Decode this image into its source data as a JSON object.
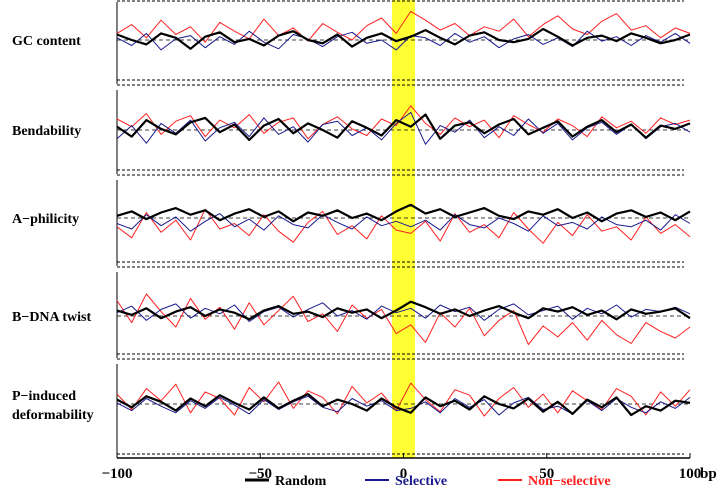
{
  "chart_data": {
    "type": "line",
    "x_label": "bp",
    "xlim": [
      -100,
      100
    ],
    "x_ticks": [
      "−100",
      "−50",
      "0",
      "50",
      "100"
    ],
    "highlight_region": [
      -4,
      4
    ],
    "highlight_color": "#ffff33",
    "series_meta": [
      {
        "name": "Random",
        "color": "#000000"
      },
      {
        "name": "Selective",
        "color": "#1a1a8c"
      },
      {
        "name": "Non−selective",
        "color": "#ff2020"
      }
    ],
    "panels": [
      {
        "label_lines": [
          "GC content"
        ],
        "random": [
          0.5,
          0.0,
          -0.4,
          0.6,
          0.2,
          -0.8,
          0.3,
          0.7,
          -0.2,
          0.1,
          -0.5,
          0.4,
          0.8,
          0.0,
          -0.3,
          0.5,
          -0.6,
          0.2,
          0.6,
          -0.1,
          0.3,
          0.9,
          0.2,
          -0.4,
          0.4,
          0.7,
          0.0,
          -0.2,
          0.1,
          1.0,
          0.3,
          -0.5,
          0.2,
          0.4,
          -0.1,
          0.6,
          0.2,
          -0.3,
          0.0,
          0.5
        ],
        "selective": [
          0.2,
          -0.5,
          0.6,
          -0.9,
          0.1,
          0.4,
          -0.7,
          0.3,
          -0.4,
          0.8,
          -0.2,
          -0.8,
          0.5,
          0.1,
          -0.6,
          0.3,
          0.7,
          -0.3,
          0.0,
          -0.9,
          0.4,
          0.2,
          -0.5,
          0.6,
          -0.2,
          0.3,
          -0.7,
          0.1,
          0.5,
          -0.4,
          0.2,
          -0.6,
          0.8,
          -0.1,
          0.3,
          -0.5,
          0.4,
          -0.2,
          0.6,
          -0.3
        ],
        "nonselective": [
          0.6,
          1.4,
          0.2,
          1.8,
          0.5,
          1.2,
          -0.2,
          1.6,
          0.8,
          0.1,
          1.9,
          0.4,
          1.1,
          -0.1,
          1.5,
          0.7,
          0.0,
          1.3,
          2.0,
          0.6,
          2.6,
          1.8,
          0.9,
          1.5,
          0.4,
          1.2,
          0.8,
          1.9,
          0.3,
          1.4,
          2.2,
          1.0,
          0.5,
          1.7,
          2.4,
          0.9,
          1.3,
          0.2,
          1.1,
          0.6
        ]
      },
      {
        "label_lines": [
          "Bendability"
        ],
        "random": [
          0.3,
          -0.6,
          0.9,
          0.1,
          -0.4,
          0.7,
          1.1,
          -0.2,
          0.5,
          -0.9,
          0.4,
          1.0,
          -0.3,
          0.6,
          0.0,
          -0.7,
          0.8,
          0.2,
          -0.5,
          0.9,
          0.3,
          1.4,
          -0.8,
          0.4,
          0.7,
          -0.3,
          0.5,
          1.0,
          -0.4,
          0.2,
          0.8,
          -0.6,
          0.3,
          0.9,
          -0.2,
          0.5,
          -0.7,
          0.4,
          0.1,
          0.6
        ],
        "selective": [
          -0.8,
          0.4,
          -1.2,
          0.6,
          -0.3,
          0.9,
          -1.0,
          0.2,
          0.7,
          -0.6,
          1.1,
          -0.4,
          0.3,
          -1.1,
          0.5,
          0.8,
          -0.5,
          0.2,
          -0.9,
          0.6,
          1.6,
          -1.3,
          0.4,
          -0.2,
          0.9,
          -0.7,
          0.3,
          -0.5,
          1.0,
          -0.3,
          0.6,
          -0.9,
          0.2,
          0.7,
          -0.4,
          0.5,
          -0.8,
          0.3,
          0.6,
          -0.2
        ],
        "nonselective": [
          1.0,
          0.3,
          1.5,
          -0.4,
          0.8,
          1.3,
          -0.6,
          0.9,
          0.2,
          1.4,
          -0.3,
          0.7,
          1.1,
          -0.8,
          0.5,
          1.2,
          0.1,
          -0.5,
          1.0,
          0.4,
          2.2,
          0.6,
          -0.4,
          1.1,
          0.3,
          0.9,
          -0.7,
          1.3,
          0.5,
          -0.2,
          1.0,
          0.4,
          -0.6,
          1.2,
          0.2,
          0.8,
          -0.3,
          1.1,
          0.5,
          0.9
        ]
      },
      {
        "label_lines": [
          "A−philicity"
        ],
        "random": [
          0.2,
          0.6,
          -0.1,
          0.5,
          0.9,
          0.3,
          0.7,
          -0.2,
          0.4,
          0.8,
          0.1,
          0.6,
          -0.3,
          0.5,
          0.2,
          0.7,
          0.0,
          0.4,
          -0.2,
          0.6,
          1.2,
          0.4,
          0.8,
          0.1,
          0.5,
          0.9,
          0.2,
          -0.1,
          0.6,
          0.3,
          0.8,
          0.0,
          0.5,
          -0.3,
          0.4,
          0.7,
          0.1,
          0.5,
          -0.2,
          0.6
        ],
        "selective": [
          -0.5,
          -1.0,
          0.3,
          -0.7,
          0.1,
          -1.2,
          -0.3,
          0.4,
          -0.8,
          -0.1,
          -1.1,
          0.2,
          -0.6,
          -0.9,
          0.3,
          -0.4,
          -1.0,
          0.1,
          -0.7,
          -0.3,
          -0.8,
          -0.2,
          -1.1,
          0.3,
          -0.6,
          -0.9,
          0.0,
          -0.5,
          -1.2,
          0.2,
          -0.7,
          -0.4,
          -1.0,
          0.1,
          -0.6,
          -0.8,
          -0.2,
          -1.1,
          0.3,
          -0.5
        ],
        "nonselective": [
          -0.8,
          -1.8,
          0.5,
          -1.3,
          -0.2,
          -2.0,
          0.8,
          -1.0,
          -0.5,
          -1.6,
          0.3,
          -1.2,
          -2.2,
          -0.4,
          0.6,
          -1.5,
          -0.7,
          -1.9,
          0.2,
          -1.1,
          -1.4,
          -0.3,
          -2.1,
          0.4,
          -1.3,
          -0.6,
          -1.8,
          0.5,
          -1.0,
          -2.3,
          -0.4,
          -1.6,
          0.3,
          -1.2,
          -0.8,
          -2.0,
          0.1,
          -1.4,
          -0.6,
          -1.7
        ]
      },
      {
        "label_lines": [
          "B−DNA twist"
        ],
        "random": [
          0.5,
          0.1,
          0.7,
          -0.2,
          0.4,
          0.8,
          0.0,
          0.6,
          0.3,
          -0.3,
          0.5,
          0.9,
          0.2,
          0.4,
          -0.1,
          0.7,
          0.3,
          0.6,
          -0.2,
          0.5,
          1.3,
          0.8,
          0.2,
          0.6,
          0.0,
          0.5,
          0.9,
          0.3,
          -0.2,
          0.7,
          0.4,
          0.8,
          0.1,
          0.5,
          -0.3,
          0.6,
          0.2,
          0.4,
          0.7,
          -0.2
        ],
        "selective": [
          0.3,
          0.9,
          -0.4,
          0.6,
          1.1,
          -0.2,
          0.7,
          0.2,
          1.0,
          -0.5,
          0.4,
          0.8,
          -0.1,
          0.6,
          1.2,
          0.0,
          0.5,
          -0.3,
          0.9,
          0.3,
          0.7,
          -0.2,
          1.0,
          0.4,
          0.8,
          -0.4,
          0.6,
          1.1,
          0.1,
          0.5,
          0.9,
          -0.3,
          0.7,
          0.2,
          1.0,
          -0.1,
          0.6,
          0.4,
          0.8,
          0.2
        ],
        "nonselective": [
          1.4,
          -0.6,
          2.0,
          0.4,
          -1.0,
          1.6,
          -0.3,
          0.8,
          -1.2,
          1.2,
          -0.8,
          0.5,
          1.8,
          -0.5,
          0.2,
          -1.4,
          1.0,
          -0.2,
          0.6,
          -1.6,
          -0.8,
          -2.4,
          0.3,
          -1.0,
          0.7,
          -1.8,
          -0.4,
          0.5,
          -2.6,
          -0.9,
          -1.9,
          -0.6,
          -2.2,
          -0.4,
          -1.7,
          -2.5,
          -0.6,
          -1.4,
          -2.0,
          -1.0
        ]
      },
      {
        "label_lines": [
          "P−induced",
          "deformability"
        ],
        "random": [
          0.4,
          -0.3,
          0.7,
          0.2,
          -0.6,
          0.5,
          -0.2,
          0.8,
          0.1,
          -0.5,
          0.6,
          -0.4,
          0.3,
          0.9,
          -0.2,
          0.4,
          0.0,
          -0.6,
          0.5,
          -0.3,
          -0.8,
          0.6,
          -0.2,
          0.3,
          -0.5,
          0.7,
          0.0,
          -0.4,
          0.5,
          -0.7,
          0.2,
          -0.9,
          0.4,
          -0.3,
          0.6,
          -1.0,
          -0.2,
          -0.6,
          0.3,
          0.1
        ],
        "selective": [
          0.1,
          -0.6,
          0.5,
          -0.2,
          -0.8,
          0.3,
          -0.4,
          0.6,
          -0.1,
          -0.9,
          0.4,
          -0.5,
          0.2,
          0.7,
          -0.3,
          -0.7,
          0.5,
          -0.2,
          0.3,
          -0.6,
          -0.4,
          0.2,
          -0.8,
          0.5,
          -0.3,
          0.4,
          -1.0,
          0.1,
          0.6,
          -0.5,
          -0.2,
          -0.9,
          0.3,
          -0.6,
          0.5,
          -0.3,
          -0.8,
          0.2,
          -0.4,
          0.6
        ],
        "nonselective": [
          0.9,
          -0.5,
          1.4,
          0.3,
          1.8,
          -0.8,
          1.1,
          0.5,
          -1.0,
          1.5,
          0.2,
          2.0,
          -0.4,
          1.2,
          0.6,
          -0.9,
          1.6,
          0.1,
          1.0,
          -0.6,
          1.9,
          0.4,
          -0.7,
          1.3,
          0.8,
          -1.1,
          0.5,
          1.5,
          -0.3,
          0.9,
          -0.8,
          1.2,
          0.3,
          -0.5,
          1.4,
          0.7,
          -1.0,
          1.1,
          -0.2,
          1.3
        ]
      }
    ]
  }
}
